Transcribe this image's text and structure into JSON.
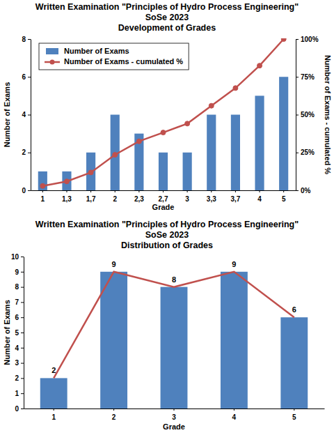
{
  "chart_data": [
    {
      "type": "bar",
      "title": [
        "Written Examination \"Principles of Hydro Process Engineering\"",
        "SoSe 2023",
        "Development of Grades"
      ],
      "x_label": "Grade",
      "y_label": "Number of Exams",
      "y2_label": "Number of Exams - cumulated %",
      "categories": [
        "1",
        "1,3",
        "1,7",
        "2",
        "2,3",
        "2,7",
        "3",
        "3,3",
        "3,7",
        "4",
        "5"
      ],
      "series": [
        {
          "name": "Number of Exams",
          "type": "bar",
          "color": "#4f81bd",
          "values": [
            1,
            1,
            2,
            4,
            3,
            2,
            2,
            4,
            4,
            5,
            6
          ]
        },
        {
          "name": "Number of Exams - cumulated %",
          "type": "line",
          "color": "#c0504d",
          "marker": "circle",
          "axis": "y2",
          "values": [
            2.9,
            5.9,
            11.8,
            23.5,
            32.4,
            38.2,
            44.1,
            55.9,
            67.6,
            82.4,
            100
          ]
        }
      ],
      "ylim": [
        0,
        8
      ],
      "yticks": [
        0,
        2,
        4,
        6,
        8
      ],
      "y2lim": [
        0,
        100
      ],
      "y2ticks": [
        {
          "value": 0,
          "label": "0%"
        },
        {
          "value": 25,
          "label": "25%"
        },
        {
          "value": 50,
          "label": "50%"
        },
        {
          "value": 75,
          "label": "75%"
        },
        {
          "value": 100,
          "label": "100%"
        }
      ],
      "grid": false,
      "legend": "upper left"
    },
    {
      "type": "bar",
      "title": [
        "Written Examination \"Principles of Hydro Process Engineering\"",
        "SoSe 2023",
        "Distribution of Grades"
      ],
      "x_label": "Grade",
      "y_label": "Number of Exams",
      "categories": [
        "1",
        "2",
        "3",
        "4",
        "5"
      ],
      "series": [
        {
          "type": "bar",
          "color": "#4f81bd",
          "data_labels": true,
          "values": [
            2,
            9,
            8,
            9,
            6
          ]
        },
        {
          "type": "line",
          "color": "#c0504d",
          "values": [
            2,
            9,
            8,
            9,
            6
          ]
        }
      ],
      "ylim": [
        0,
        10
      ],
      "yticks": [
        0,
        1,
        2,
        3,
        4,
        5,
        6,
        7,
        8,
        9,
        10
      ],
      "grid": false
    }
  ]
}
